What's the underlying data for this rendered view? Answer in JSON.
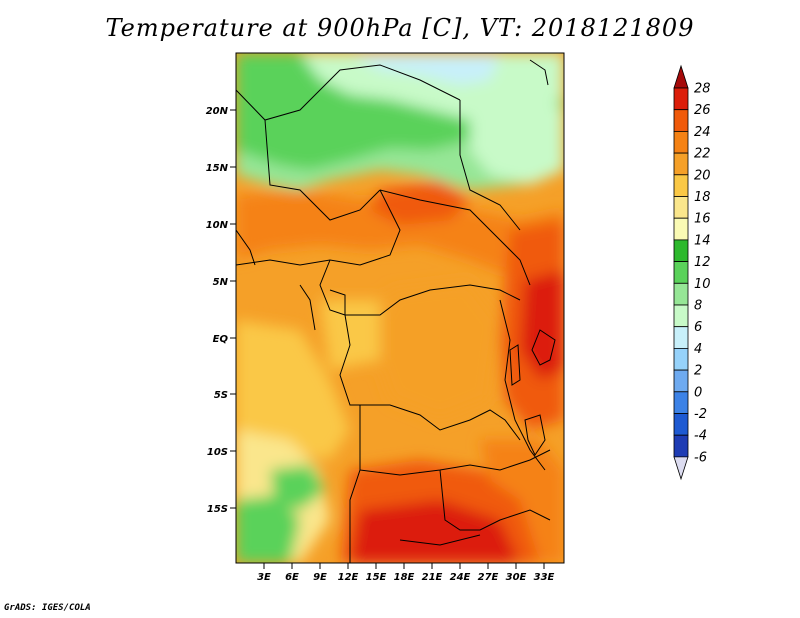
{
  "title": "Temperature at 900hPa [C], VT: 2018121809",
  "credit": "GrADS: IGES/COLA",
  "map": {
    "lat_labels": [
      "20N",
      "15N",
      "10N",
      "5N",
      "EQ",
      "5S",
      "10S",
      "15S"
    ],
    "lon_labels": [
      "3E",
      "6E",
      "9E",
      "12E",
      "15E",
      "18E",
      "21E",
      "24E",
      "27E",
      "30E",
      "33E"
    ]
  },
  "colorbar": {
    "labels": [
      "28",
      "26",
      "24",
      "22",
      "20",
      "18",
      "16",
      "14",
      "12",
      "10",
      "8",
      "6",
      "4",
      "2",
      "0",
      "-2",
      "-4",
      "-6"
    ],
    "colors": [
      "#a50a0a",
      "#dc1e0a",
      "#f05a0a",
      "#f58214",
      "#f5a028",
      "#fac846",
      "#fae68c",
      "#fafab4",
      "#2db92d",
      "#5ad25a",
      "#96e696",
      "#c8fac8",
      "#c8f0fa",
      "#96d2fa",
      "#6eaaf0",
      "#3c82e6",
      "#1e5ad2",
      "#1e3cb4",
      "#0a1e8c",
      "#dcdcf0"
    ],
    "unit": "C"
  }
}
